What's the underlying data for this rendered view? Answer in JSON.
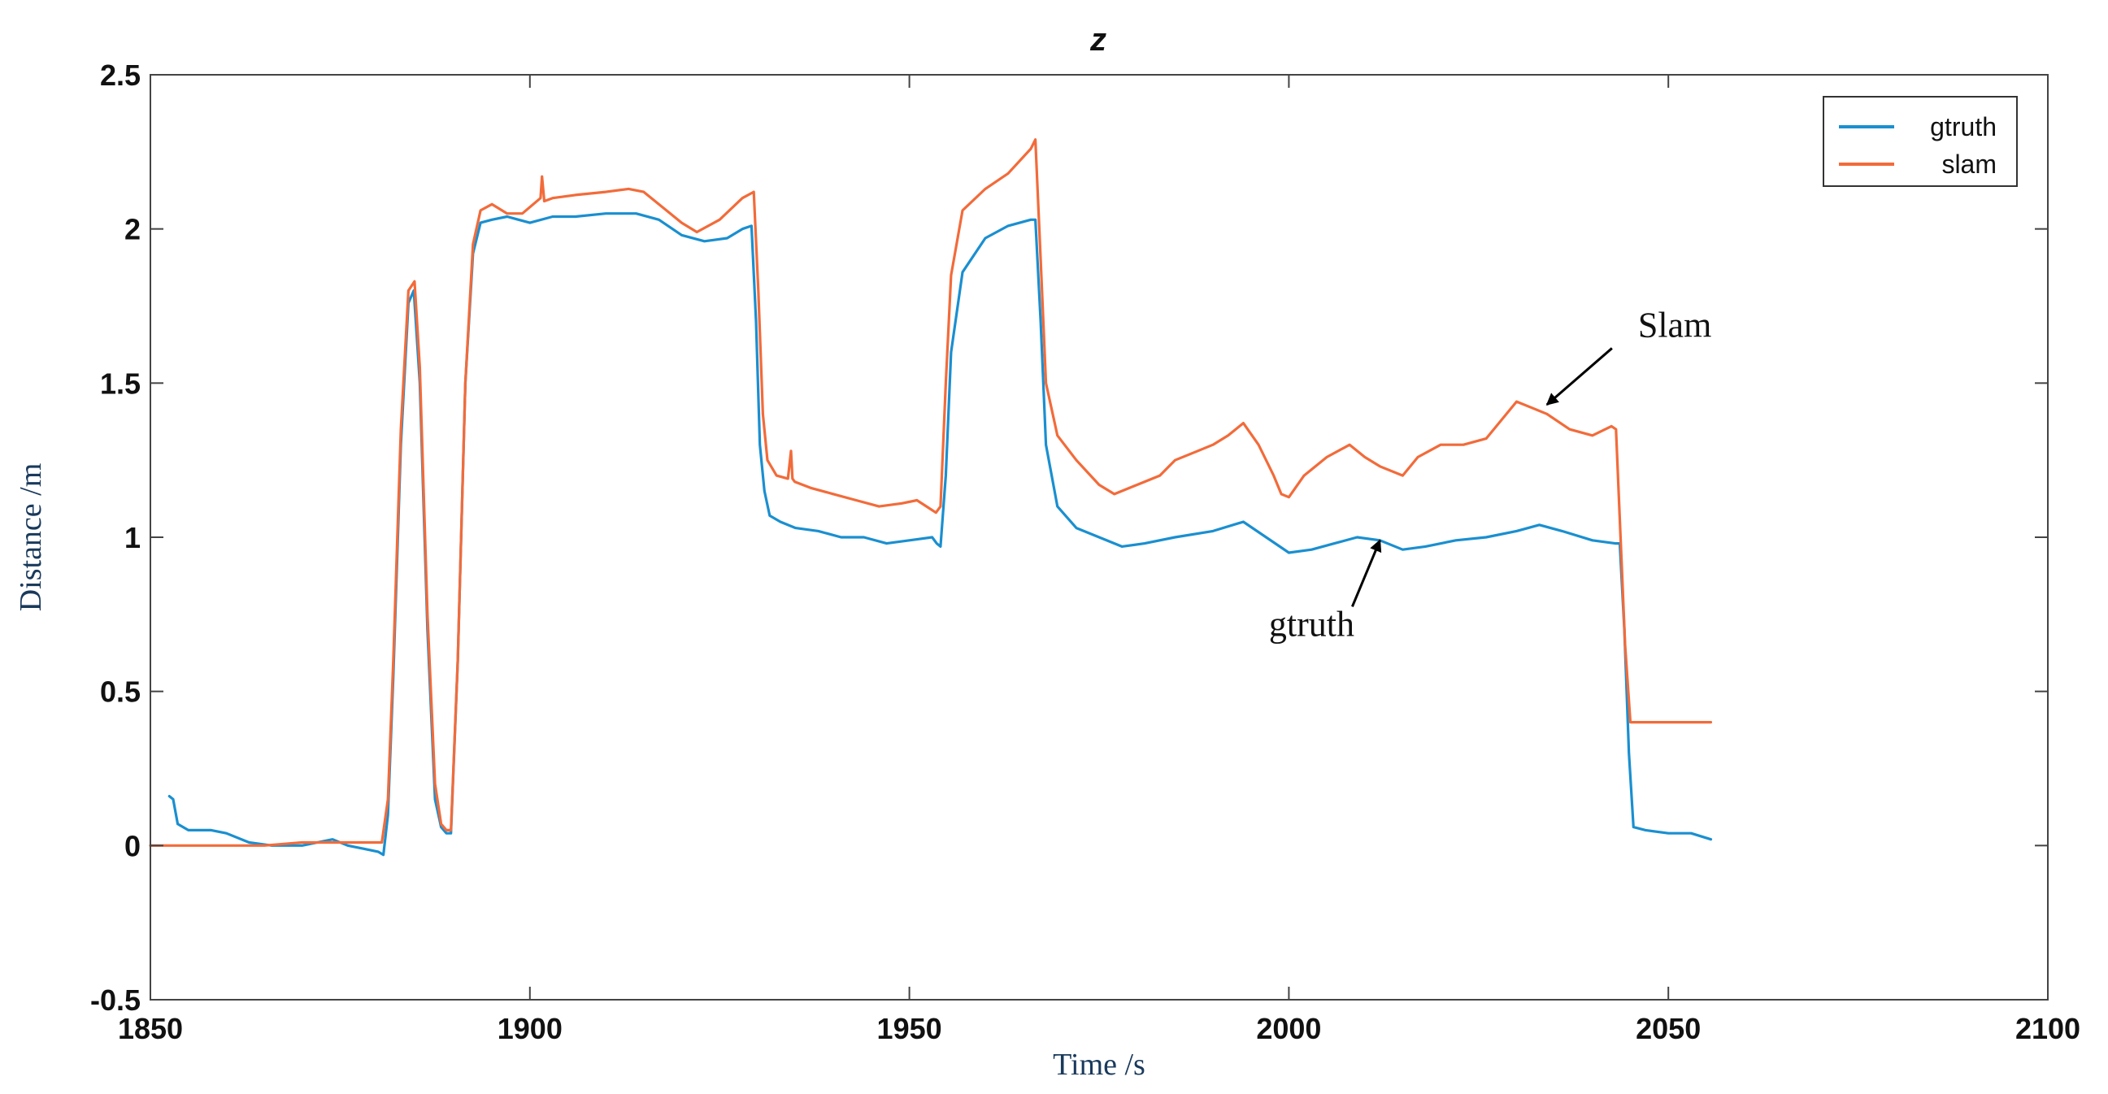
{
  "chart_data": {
    "type": "line",
    "title": "z",
    "xlabel": "Time /s",
    "ylabel": "Distance /m",
    "xlim": [
      1850,
      2100
    ],
    "ylim": [
      -0.5,
      2.5
    ],
    "xticks": [
      1850,
      1900,
      1950,
      2000,
      2050,
      2100
    ],
    "yticks": [
      -0.5,
      0,
      0.5,
      1,
      1.5,
      2,
      2.5
    ],
    "legend_position": "top-right",
    "grid": false,
    "series": [
      {
        "name": "gtruth",
        "color": "#1a8fd0",
        "x": [
          1852.5,
          1853,
          1853.6,
          1855,
          1858,
          1860,
          1863,
          1866,
          1870,
          1874,
          1876,
          1878,
          1880,
          1880.7,
          1881.3,
          1882,
          1883,
          1884,
          1884.7,
          1885.5,
          1886.5,
          1887.5,
          1888.3,
          1889,
          1889.6,
          1890.5,
          1891.5,
          1892.5,
          1893.5,
          1895,
          1897,
          1900,
          1903,
          1906,
          1910,
          1914,
          1917,
          1920,
          1923,
          1926,
          1928,
          1929.2,
          1929.8,
          1930.3,
          1930.9,
          1931.6,
          1933,
          1935,
          1938,
          1941,
          1944,
          1947,
          1950,
          1953,
          1953.6,
          1954.1,
          1954.8,
          1955.5,
          1957,
          1960,
          1963,
          1966,
          1966.6,
          1967.3,
          1968,
          1969.5,
          1972,
          1975,
          1978,
          1981,
          1985,
          1990,
          1994,
          1997,
          2000,
          2003,
          2006,
          2009,
          2012,
          2015,
          2018,
          2022,
          2026,
          2030,
          2033,
          2036,
          2040,
          2043,
          2043.6,
          2044.2,
          2044.8,
          2045.4,
          2047,
          2050,
          2053,
          2055.6
        ],
        "y": [
          0.16,
          0.15,
          0.07,
          0.05,
          0.05,
          0.04,
          0.01,
          0.0,
          0.0,
          0.02,
          0.0,
          -0.01,
          -0.02,
          -0.03,
          0.1,
          0.55,
          1.3,
          1.76,
          1.8,
          1.5,
          0.7,
          0.15,
          0.06,
          0.04,
          0.04,
          0.6,
          1.5,
          1.92,
          2.02,
          2.03,
          2.04,
          2.02,
          2.04,
          2.04,
          2.05,
          2.05,
          2.03,
          1.98,
          1.96,
          1.97,
          2.0,
          2.01,
          1.7,
          1.3,
          1.15,
          1.07,
          1.05,
          1.03,
          1.02,
          1.0,
          1.0,
          0.98,
          0.99,
          1.0,
          0.98,
          0.97,
          1.2,
          1.6,
          1.86,
          1.97,
          2.01,
          2.03,
          2.03,
          1.7,
          1.3,
          1.1,
          1.03,
          1.0,
          0.97,
          0.98,
          1.0,
          1.02,
          1.05,
          1.0,
          0.95,
          0.96,
          0.98,
          1.0,
          0.99,
          0.96,
          0.97,
          0.99,
          1.0,
          1.02,
          1.04,
          1.02,
          0.99,
          0.98,
          0.98,
          0.7,
          0.3,
          0.06,
          0.05,
          0.04,
          0.04,
          0.02
        ]
      },
      {
        "name": "slam",
        "color": "#f26b3a",
        "x": [
          1850,
          1855,
          1860,
          1865,
          1870,
          1875,
          1880.5,
          1881.3,
          1882,
          1883,
          1884,
          1884.8,
          1885.5,
          1886.5,
          1887.5,
          1888.3,
          1889,
          1889.6,
          1890.5,
          1891.5,
          1892.5,
          1893.5,
          1895,
          1897,
          1899,
          1901.4,
          1901.6,
          1901.9,
          1903,
          1906,
          1910,
          1913,
          1915,
          1918,
          1920,
          1922,
          1925,
          1928,
          1929.5,
          1930.1,
          1930.7,
          1931.3,
          1932.5,
          1934,
          1934.4,
          1934.6,
          1934.9,
          1937,
          1940,
          1943,
          1946,
          1949,
          1951,
          1953.5,
          1954.1,
          1954.8,
          1955.5,
          1957,
          1960,
          1963,
          1966,
          1966.6,
          1967.3,
          1968,
          1969.5,
          1972,
          1975,
          1977,
          1980,
          1983,
          1985,
          1988,
          1990,
          1992,
          1994,
          1996,
          1998,
          1999,
          2000,
          2002,
          2005,
          2008,
          2010,
          2012,
          2015,
          2017,
          2020,
          2023,
          2026,
          2028,
          2030,
          2032,
          2034,
          2037,
          2040,
          2042.5,
          2043.1,
          2043.7,
          2044.3,
          2045,
          2047,
          2050,
          2055.6
        ],
        "y": [
          0.0,
          0.0,
          0.0,
          0.0,
          0.01,
          0.01,
          0.01,
          0.15,
          0.6,
          1.35,
          1.8,
          1.83,
          1.55,
          0.75,
          0.2,
          0.07,
          0.05,
          0.05,
          0.6,
          1.5,
          1.95,
          2.06,
          2.08,
          2.05,
          2.05,
          2.1,
          2.17,
          2.09,
          2.1,
          2.11,
          2.12,
          2.13,
          2.12,
          2.06,
          2.02,
          1.99,
          2.03,
          2.1,
          2.12,
          1.8,
          1.4,
          1.25,
          1.2,
          1.19,
          1.28,
          1.19,
          1.18,
          1.16,
          1.14,
          1.12,
          1.1,
          1.11,
          1.12,
          1.08,
          1.1,
          1.5,
          1.85,
          2.06,
          2.13,
          2.18,
          2.26,
          2.29,
          1.9,
          1.5,
          1.33,
          1.25,
          1.17,
          1.14,
          1.17,
          1.2,
          1.25,
          1.28,
          1.3,
          1.33,
          1.37,
          1.3,
          1.2,
          1.14,
          1.13,
          1.2,
          1.26,
          1.3,
          1.26,
          1.23,
          1.2,
          1.26,
          1.3,
          1.3,
          1.32,
          1.38,
          1.44,
          1.42,
          1.4,
          1.35,
          1.33,
          1.36,
          1.35,
          1.0,
          0.65,
          0.4,
          0.4,
          0.4,
          0.4
        ]
      }
    ],
    "annotations": [
      {
        "text": "Slam",
        "target": [
          2034,
          1.43
        ],
        "label_at": [
          2046,
          1.65
        ]
      },
      {
        "text": "gtruth",
        "target": [
          2012,
          0.99
        ],
        "label_at": [
          2003,
          0.68
        ]
      }
    ]
  }
}
